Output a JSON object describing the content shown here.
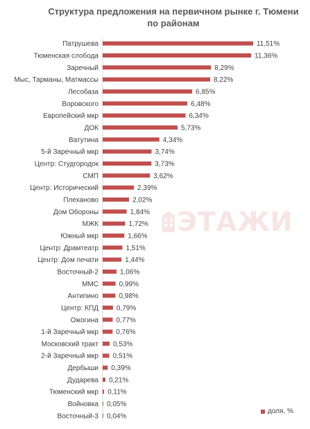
{
  "chart_data": {
    "type": "bar",
    "orientation": "horizontal",
    "title": "Структура предложения на первичном рынке г. Тюмени по районам",
    "title_lines": [
      "Структура предложения на первичном рынке г. Тюмени",
      "по районам"
    ],
    "categories": [
      "Патрушева",
      "Тюменская слобода",
      "Заречный",
      "Мыс, Тарманы, Матмассы",
      "Лесобаза",
      "Воровского",
      "Европейский мкр",
      "ДОК",
      "Ватутина",
      "5-й Заречный мкр",
      "Центр: Студгородок",
      "СМП",
      "Центр: Исторический",
      "Плеханово",
      "Дом Обороны",
      "МЖК",
      "Южный мкр",
      "Центр: Драмтеатр",
      "Центр: Дом печати",
      "Восточный-2",
      "ММС",
      "Антипино",
      "Центр: КПД",
      "Ожогина",
      "1-й Заречный мкр",
      "Московский тракт",
      "2-й Заречный мкр",
      "Дербыши",
      "Дударева",
      "Тюменский мкр",
      "Войновка",
      "Восточный-3"
    ],
    "series": [
      {
        "name": "доля, %",
        "values": [
          11.51,
          11.36,
          8.29,
          8.22,
          6.85,
          6.48,
          6.34,
          5.73,
          4.34,
          3.74,
          3.73,
          3.62,
          2.39,
          2.02,
          1.84,
          1.72,
          1.66,
          1.51,
          1.44,
          1.06,
          0.99,
          0.98,
          0.79,
          0.77,
          0.76,
          0.53,
          0.51,
          0.39,
          0.21,
          0.11,
          0.05,
          0.04
        ],
        "labels": [
          "11,51%",
          "11,36%",
          "8,29%",
          "8,22%",
          "6,85%",
          "6,48%",
          "6,34%",
          "5,73%",
          "4,34%",
          "3,74%",
          "3,73%",
          "3,62%",
          "2,39%",
          "2,02%",
          "1,84%",
          "1,72%",
          "1,66%",
          "1,51%",
          "1,44%",
          "1,06%",
          "0,99%",
          "0,98%",
          "0,79%",
          "0,77%",
          "0,76%",
          "0,53%",
          "0,51%",
          "0,39%",
          "0,21%",
          "0,11%",
          "0,05%",
          "0,04%"
        ]
      }
    ],
    "xlim": [
      0,
      12
    ],
    "grid": false,
    "legend_position": "bottom-right",
    "bar_color": "#c0504d"
  },
  "watermark": {
    "text": "ЭТАЖИ",
    "color": "#e8a1a0"
  }
}
